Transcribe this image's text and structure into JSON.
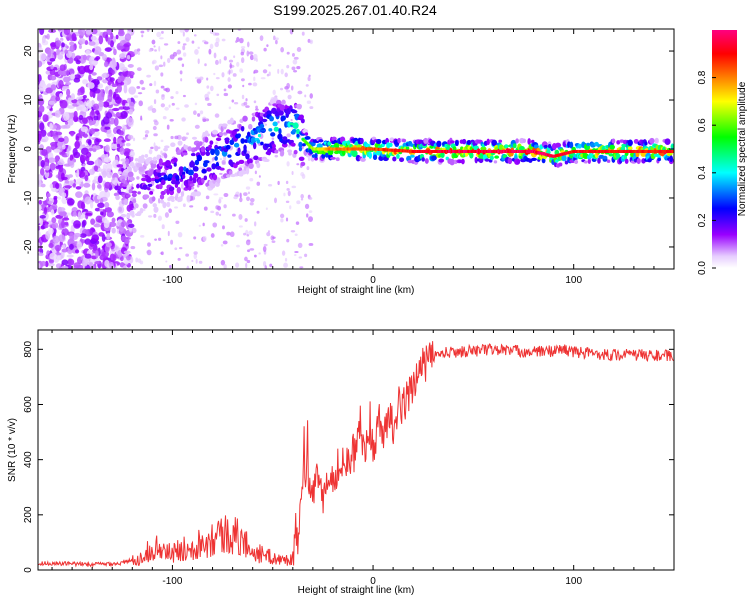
{
  "figure_title": "S199.2025.267.01.40.R24",
  "chart_data": [
    {
      "type": "heatmap",
      "title": "S199.2025.267.01.40.R24",
      "xlabel": "Height of straight line (km)",
      "ylabel": "Frequency (Hz)",
      "xlim": [
        -167,
        150
      ],
      "ylim": [
        -24.5,
        24.5
      ],
      "xticks": [
        -100,
        0,
        100
      ],
      "yticks": [
        -20,
        -10,
        0,
        10,
        20
      ],
      "grid": false,
      "colorbar": {
        "label": "Normalized spectral amplitude",
        "range": [
          0,
          1
        ],
        "ticks": [
          0.0,
          0.2,
          0.4,
          0.6,
          0.8
        ],
        "tick_labels": [
          "0.0",
          "0.2",
          "0.4",
          "0.6",
          "0.8"
        ],
        "colors": [
          "#ffffff",
          "#e6ccff",
          "#9900ff",
          "#0000ff",
          "#00ffff",
          "#00ff00",
          "#ffff00",
          "#ff8000",
          "#ff0000",
          "#ff0080"
        ]
      },
      "ridge": {
        "x": [
          -120,
          -110,
          -100,
          -90,
          -80,
          -70,
          -60,
          -50,
          -40,
          -35,
          -30,
          -20,
          -10,
          0,
          20,
          40,
          60,
          80,
          90,
          100,
          120,
          150
        ],
        "y": [
          -8,
          -7,
          -5,
          -4,
          -2,
          0,
          2,
          4,
          5,
          2,
          0,
          0,
          0,
          0,
          -0.5,
          -0.5,
          -0.5,
          -0.5,
          -1.5,
          -0.5,
          -0.5,
          -0.5
        ],
        "amplitude": [
          0.15,
          0.2,
          0.3,
          0.3,
          0.35,
          0.35,
          0.4,
          0.45,
          0.45,
          0.55,
          0.65,
          0.8,
          0.85,
          0.85,
          0.9,
          0.95,
          0.95,
          0.95,
          0.95,
          0.9,
          0.9,
          0.9
        ]
      }
    },
    {
      "type": "line",
      "title": "",
      "xlabel": "Height of straight line (km)",
      "ylabel": "SNR (10 * v/v)",
      "xlim": [
        -167,
        150
      ],
      "ylim": [
        0,
        870
      ],
      "xticks": [
        -100,
        0,
        100
      ],
      "yticks": [
        0,
        200,
        400,
        600,
        800
      ],
      "color": "#ee3333",
      "grid": false,
      "series": [
        {
          "x": [
            -167,
            -140,
            -125,
            -115,
            -110,
            -105,
            -100,
            -95,
            -90,
            -85,
            -80,
            -75,
            -70,
            -65,
            -60,
            -55,
            -50,
            -45,
            -40,
            -37,
            -35,
            -33,
            -30,
            -28,
            -25,
            -22,
            -20,
            -17,
            -15,
            -12,
            -10,
            -7,
            -5,
            -2,
            0,
            3,
            5,
            8,
            10,
            13,
            15,
            18,
            20,
            23,
            25,
            30,
            35,
            40,
            50,
            60,
            70,
            80,
            90,
            95,
            100,
            110,
            120,
            130,
            140,
            150
          ],
          "y": [
            25,
            20,
            25,
            45,
            85,
            70,
            60,
            75,
            90,
            100,
            120,
            130,
            130,
            105,
            70,
            55,
            45,
            35,
            40,
            120,
            330,
            380,
            250,
            320,
            260,
            360,
            320,
            390,
            340,
            420,
            410,
            480,
            430,
            500,
            450,
            540,
            500,
            560,
            520,
            600,
            590,
            650,
            680,
            710,
            740,
            775,
            785,
            790,
            795,
            800,
            795,
            790,
            795,
            800,
            790,
            785,
            780,
            780,
            778,
            775
          ]
        }
      ]
    }
  ]
}
